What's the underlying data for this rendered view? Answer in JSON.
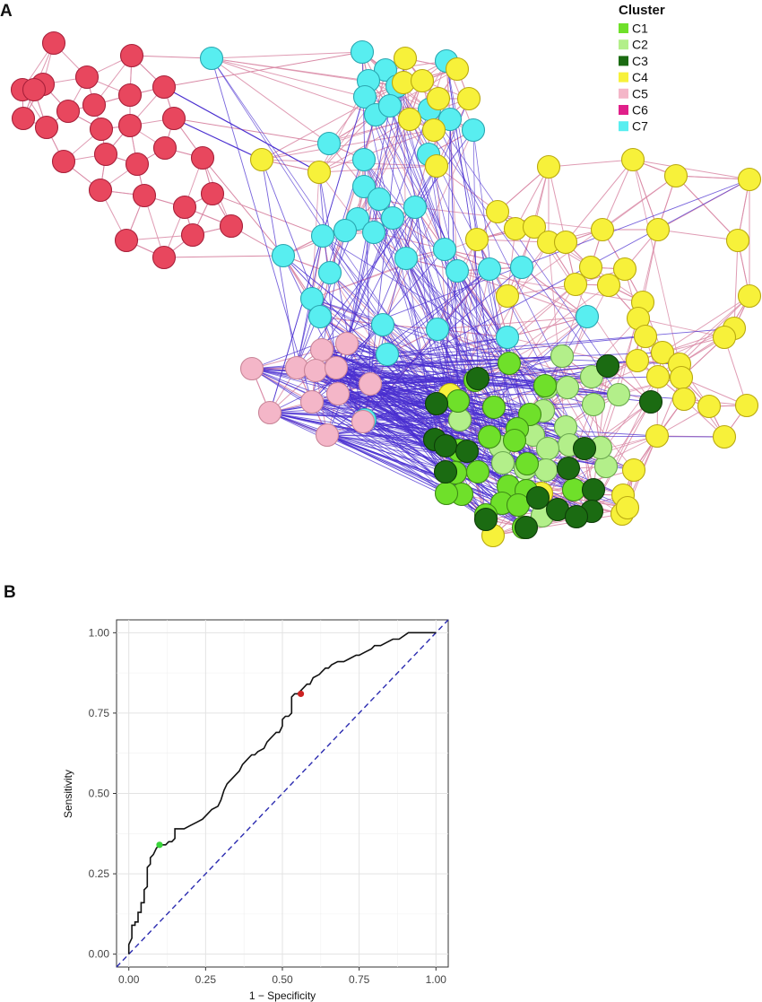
{
  "panels": {
    "a_label": "A",
    "b_label": "B"
  },
  "colors": {
    "within_edge": "#d98aa6",
    "between_edge": "#4a2fd0",
    "roc_line": "#111111",
    "diagonal": "#2b2bb0",
    "point_red": "#cc2222",
    "point_green": "#39d43a"
  },
  "chart_data": [
    {
      "type": "network",
      "title": "",
      "legend": {
        "title": "Cluster",
        "placement": "top-right",
        "items": [
          {
            "label": "C1",
            "color": "#6fe02a"
          },
          {
            "label": "C2",
            "color": "#b3ef8a"
          },
          {
            "label": "C3",
            "color": "#1b6b12"
          },
          {
            "label": "C4",
            "color": "#f7f13a"
          },
          {
            "label": "C5",
            "color": "#f4b6c8"
          },
          {
            "label": "C6",
            "color": "#e0208a"
          },
          {
            "label": "C7",
            "color": "#58eef0"
          }
        ]
      },
      "node_counts": {
        "C1": 22,
        "C2": 18,
        "C3": 16,
        "C4": 62,
        "C5": 12,
        "C6": 0,
        "C7": 37,
        "red_unlabeled": 28
      }
    },
    {
      "type": "line",
      "title": "",
      "xlabel": "1 − Specificity",
      "ylabel": "Sensitivity",
      "xlim": [
        -0.04,
        1.04
      ],
      "ylim": [
        -0.04,
        1.04
      ],
      "xticks": [
        0.0,
        0.25,
        0.5,
        0.75,
        1.0
      ],
      "yticks": [
        0.0,
        0.25,
        0.5,
        0.75,
        1.0
      ],
      "xtick_labels": [
        "0.00",
        "0.25",
        "0.50",
        "0.75",
        "1.00"
      ],
      "ytick_labels": [
        "0.00",
        "0.25",
        "0.50",
        "0.75",
        "1.00"
      ],
      "grid": true,
      "series": [
        {
          "name": "ROC",
          "x": [
            0.0,
            0.0,
            0.01,
            0.01,
            0.02,
            0.02,
            0.03,
            0.03,
            0.04,
            0.04,
            0.05,
            0.05,
            0.06,
            0.06,
            0.07,
            0.07,
            0.08,
            0.09,
            0.1,
            0.11,
            0.12,
            0.13,
            0.14,
            0.15,
            0.15,
            0.18,
            0.2,
            0.22,
            0.24,
            0.25,
            0.27,
            0.29,
            0.3,
            0.31,
            0.32,
            0.33,
            0.34,
            0.36,
            0.37,
            0.38,
            0.39,
            0.4,
            0.41,
            0.42,
            0.44,
            0.45,
            0.46,
            0.47,
            0.48,
            0.49,
            0.5,
            0.5,
            0.51,
            0.52,
            0.53,
            0.53,
            0.54,
            0.55,
            0.56,
            0.57,
            0.58,
            0.59,
            0.6,
            0.62,
            0.63,
            0.64,
            0.65,
            0.66,
            0.68,
            0.7,
            0.72,
            0.74,
            0.75,
            0.77,
            0.79,
            0.8,
            0.82,
            0.84,
            0.86,
            0.88,
            0.91,
            0.95,
            1.0
          ],
          "y": [
            0.0,
            0.03,
            0.05,
            0.09,
            0.09,
            0.1,
            0.1,
            0.13,
            0.13,
            0.16,
            0.16,
            0.2,
            0.21,
            0.27,
            0.28,
            0.3,
            0.31,
            0.33,
            0.34,
            0.34,
            0.34,
            0.35,
            0.35,
            0.36,
            0.39,
            0.39,
            0.4,
            0.41,
            0.42,
            0.43,
            0.45,
            0.46,
            0.48,
            0.51,
            0.53,
            0.54,
            0.55,
            0.57,
            0.59,
            0.6,
            0.61,
            0.62,
            0.62,
            0.63,
            0.64,
            0.66,
            0.67,
            0.68,
            0.69,
            0.69,
            0.71,
            0.73,
            0.74,
            0.74,
            0.75,
            0.8,
            0.81,
            0.81,
            0.82,
            0.83,
            0.84,
            0.84,
            0.86,
            0.87,
            0.88,
            0.89,
            0.89,
            0.9,
            0.91,
            0.91,
            0.92,
            0.93,
            0.93,
            0.94,
            0.95,
            0.96,
            0.96,
            0.97,
            0.98,
            0.98,
            1.0,
            1.0,
            1.0
          ]
        },
        {
          "name": "Reference",
          "x": [
            -0.04,
            1.04
          ],
          "y": [
            -0.04,
            1.04
          ]
        }
      ],
      "highlighted_points": [
        {
          "x": 0.56,
          "y": 0.81,
          "color": "#cc2222"
        },
        {
          "x": 0.1,
          "y": 0.34,
          "color": "#39d43a"
        }
      ]
    }
  ]
}
